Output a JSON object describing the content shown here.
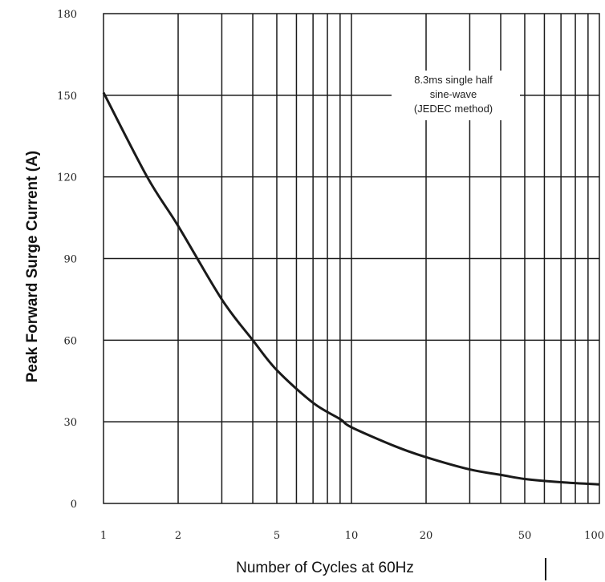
{
  "chart_data": {
    "type": "line",
    "xlabel": "Number of Cycles at 60Hz",
    "ylabel": "Peak Forward Surge Current (A)",
    "x_scale": "log",
    "xlim": [
      1,
      100
    ],
    "ylim": [
      0,
      180
    ],
    "x_ticks": [
      1,
      2,
      5,
      10,
      20,
      50,
      100
    ],
    "x_tick_labels": [
      "1",
      "2",
      "5",
      "10",
      "20",
      "50",
      "100"
    ],
    "y_ticks": [
      0,
      30,
      60,
      90,
      120,
      150,
      180
    ],
    "y_tick_labels": [
      "0",
      "30",
      "60",
      "90",
      "120",
      "150",
      "180"
    ],
    "grid": true,
    "annotation": [
      "8.3ms single half",
      "sine-wave",
      "(JEDEC method)"
    ],
    "series": [
      {
        "x": [
          1,
          1.5,
          2,
          3,
          4,
          5,
          7,
          9,
          10,
          15,
          20,
          30,
          40,
          50,
          70,
          100
        ],
        "y": [
          151,
          120,
          102,
          75,
          60,
          49,
          37,
          31,
          28,
          21,
          17,
          12.5,
          10.5,
          9,
          7.8,
          7
        ]
      }
    ],
    "colors": {
      "line": "#1a1a1a",
      "grid": "#1a1a1a"
    }
  }
}
